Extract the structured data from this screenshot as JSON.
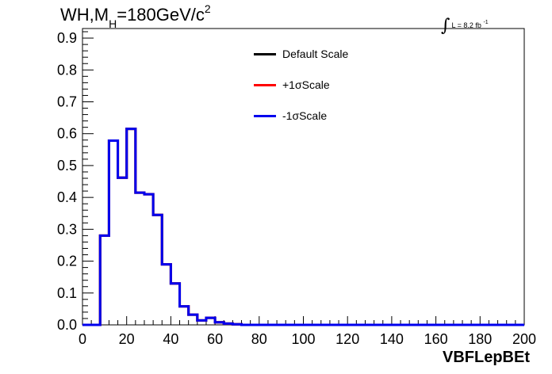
{
  "chart_data": {
    "type": "line",
    "title": {
      "prefix": "WH,M",
      "subscript": "H",
      "value": "=180GeV/c",
      "superscript": "2"
    },
    "luminosity": {
      "symbol": "∫",
      "text": "L = 8.2 fb",
      "superscript": "-1"
    },
    "xlabel": "VBFLepBEt",
    "ylabel": "",
    "xlim": [
      0,
      200
    ],
    "ylim": [
      0,
      0.93
    ],
    "xticks": [
      "0",
      "20",
      "40",
      "60",
      "80",
      "100",
      "120",
      "140",
      "160",
      "180",
      "200"
    ],
    "yticks": [
      "0.0",
      "0.1",
      "0.2",
      "0.3",
      "0.4",
      "0.5",
      "0.6",
      "0.7",
      "0.8",
      "0.9"
    ],
    "bin_edges": [
      0,
      4,
      8,
      12,
      16,
      20,
      24,
      28,
      32,
      36,
      40,
      44,
      48,
      52,
      56,
      60,
      64,
      68,
      72,
      76,
      80,
      84,
      88,
      92,
      96,
      100,
      104,
      108,
      112,
      116,
      120,
      124,
      128,
      132,
      136,
      140,
      144,
      148,
      152,
      156,
      160,
      164,
      168,
      172,
      176,
      180,
      184,
      188,
      192,
      196,
      200
    ],
    "series": [
      {
        "name": "Default Scale",
        "color": "#000000",
        "values": [
          0,
          0,
          0.28,
          0.578,
          0.462,
          0.615,
          0.415,
          0.41,
          0.345,
          0.19,
          0.13,
          0.058,
          0.032,
          0.014,
          0.022,
          0.008,
          0.004,
          0.002,
          0,
          0,
          0,
          0,
          0,
          0,
          0,
          0,
          0,
          0,
          0,
          0,
          0,
          0,
          0,
          0,
          0,
          0,
          0,
          0,
          0,
          0,
          0,
          0,
          0,
          0,
          0,
          0,
          0,
          0,
          0,
          0
        ]
      },
      {
        "name": "+1σScale",
        "color": "#ff0000",
        "values": [
          0,
          0,
          0.28,
          0.578,
          0.462,
          0.615,
          0.415,
          0.41,
          0.345,
          0.19,
          0.13,
          0.058,
          0.032,
          0.014,
          0.022,
          0.008,
          0.004,
          0.002,
          0,
          0,
          0,
          0,
          0,
          0,
          0,
          0,
          0,
          0,
          0,
          0,
          0,
          0,
          0,
          0,
          0,
          0,
          0,
          0,
          0,
          0,
          0,
          0,
          0,
          0,
          0,
          0,
          0,
          0,
          0,
          0
        ]
      },
      {
        "name": "-1σScale",
        "color": "#0000ee",
        "values": [
          0,
          0,
          0.28,
          0.578,
          0.462,
          0.615,
          0.415,
          0.41,
          0.345,
          0.19,
          0.13,
          0.058,
          0.032,
          0.014,
          0.022,
          0.008,
          0.004,
          0.002,
          0,
          0,
          0,
          0,
          0,
          0,
          0,
          0,
          0,
          0,
          0,
          0,
          0,
          0,
          0,
          0,
          0,
          0,
          0,
          0,
          0,
          0,
          0,
          0,
          0,
          0,
          0,
          0,
          0,
          0,
          0,
          0
        ]
      }
    ],
    "legend": "top-center",
    "grid": false
  }
}
